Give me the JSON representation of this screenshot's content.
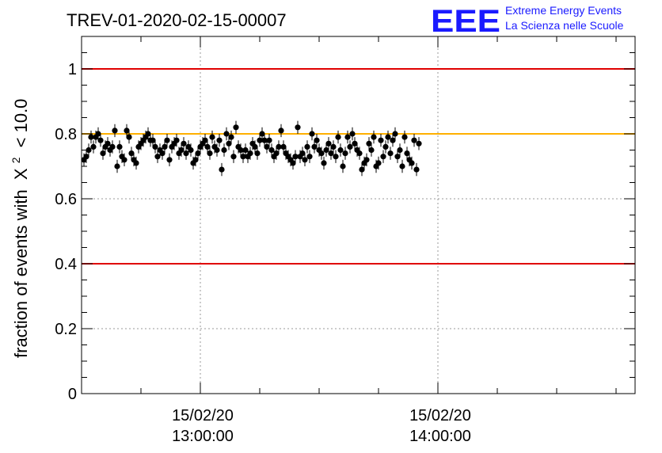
{
  "chart_data": {
    "type": "scatter",
    "title": "TREV-01-2020-02-15-00007",
    "ylabel": "fraction of events with",
    "ylabel_chi": "X",
    "ylabel_sup": "2",
    "ylabel_tail": "< 10.0",
    "ylim": [
      0,
      1.1
    ],
    "yticks": [
      "0",
      "0.2",
      "0.4",
      "0.6",
      "0.8",
      "1"
    ],
    "xlim_hours": [
      12.5,
      14.83
    ],
    "xticks": [
      {
        "x_hours": 13.0,
        "date": "15/02/20",
        "time": "13:00:00"
      },
      {
        "x_hours": 14.0,
        "date": "15/02/20",
        "time": "14:00:00"
      }
    ],
    "grid": true,
    "reference_lines": [
      {
        "y": 1.0,
        "color": "#e00000"
      },
      {
        "y": 0.8,
        "color": "#ffb000"
      },
      {
        "y": 0.4,
        "color": "#e00000"
      }
    ],
    "y_error": 0.02,
    "series": [
      {
        "marker": "circle",
        "color": "#000000",
        "x_start_hours": 12.51,
        "x_step_hours": 0.01,
        "y": [
          0.72,
          0.73,
          0.75,
          0.79,
          0.76,
          0.79,
          0.8,
          0.78,
          0.74,
          0.76,
          0.77,
          0.75,
          0.76,
          0.81,
          0.7,
          0.76,
          0.73,
          0.72,
          0.81,
          0.79,
          0.74,
          0.72,
          0.71,
          0.76,
          0.77,
          0.78,
          0.79,
          0.8,
          0.78,
          0.78,
          0.76,
          0.73,
          0.75,
          0.74,
          0.76,
          0.78,
          0.72,
          0.76,
          0.77,
          0.78,
          0.74,
          0.75,
          0.77,
          0.74,
          0.76,
          0.75,
          0.71,
          0.72,
          0.74,
          0.76,
          0.77,
          0.78,
          0.76,
          0.74,
          0.79,
          0.76,
          0.75,
          0.78,
          0.69,
          0.75,
          0.8,
          0.77,
          0.79,
          0.73,
          0.82,
          0.76,
          0.75,
          0.73,
          0.75,
          0.73,
          0.74,
          0.77,
          0.76,
          0.74,
          0.78,
          0.8,
          0.78,
          0.76,
          0.78,
          0.75,
          0.73,
          0.74,
          0.76,
          0.81,
          0.76,
          0.74,
          0.73,
          0.72,
          0.71,
          0.73,
          0.82,
          0.73,
          0.74,
          0.72,
          0.76,
          0.73,
          0.8,
          0.76,
          0.78,
          0.75,
          0.74,
          0.71,
          0.75,
          0.77,
          0.74,
          0.76,
          0.73,
          0.79,
          0.75,
          0.7,
          0.74,
          0.79,
          0.76,
          0.8,
          0.77,
          0.75,
          0.74,
          0.69,
          0.71,
          0.72,
          0.77,
          0.75,
          0.79,
          0.7,
          0.71,
          0.78,
          0.73,
          0.76,
          0.79,
          0.74,
          0.78,
          0.8,
          0.73,
          0.75,
          0.7,
          0.79,
          0.74,
          0.72,
          0.71,
          0.78,
          0.69,
          0.77
        ]
      }
    ]
  },
  "logo": {
    "mark": "EEE",
    "line1": "Extreme Energy Events",
    "line2": "La Scienza nelle Scuole"
  }
}
